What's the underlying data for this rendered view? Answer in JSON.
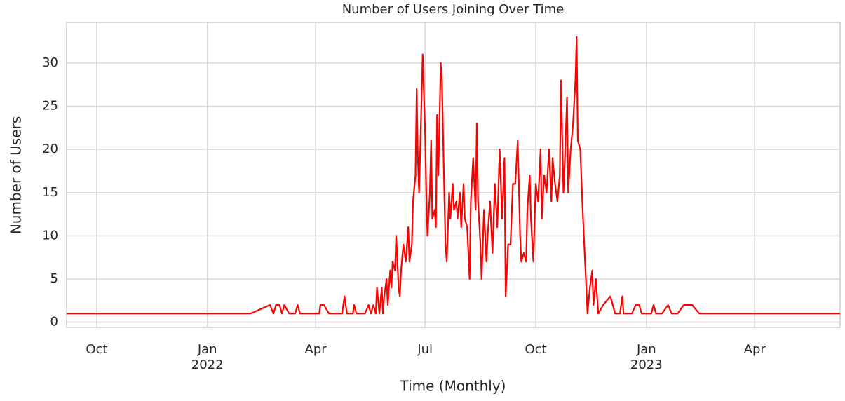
{
  "chart_data": {
    "type": "line",
    "title": "Number of Users Joining Over Time",
    "x_label": "Time (Monthly)",
    "y_label": "Number of Users",
    "grid": true,
    "xlim": [
      "2021-09-06",
      "2023-06-11"
    ],
    "xticks": [
      {
        "value": "2021-10-01",
        "label": "Oct"
      },
      {
        "value": "2022-01-01",
        "label": "Jan\n2022"
      },
      {
        "value": "2022-04-01",
        "label": "Apr"
      },
      {
        "value": "2022-07-01",
        "label": "Jul"
      },
      {
        "value": "2022-10-01",
        "label": "Oct"
      },
      {
        "value": "2023-01-01",
        "label": "Jan\n2023"
      },
      {
        "value": "2023-04-01",
        "label": "Apr"
      }
    ],
    "ylim": [
      -0.6,
      34.7
    ],
    "yticks": [
      0,
      5,
      10,
      15,
      20,
      25,
      30
    ],
    "x": [
      "2021-09-06",
      "2022-02-06",
      "2022-02-22",
      "2022-02-25",
      "2022-02-27",
      "2022-03-02",
      "2022-03-04",
      "2022-03-06",
      "2022-03-10",
      "2022-03-15",
      "2022-03-17",
      "2022-03-19",
      "2022-04-04",
      "2022-04-05",
      "2022-04-08",
      "2022-04-12",
      "2022-04-23",
      "2022-04-25",
      "2022-04-27",
      "2022-05-02",
      "2022-05-03",
      "2022-05-05",
      "2022-05-12",
      "2022-05-15",
      "2022-05-17",
      "2022-05-19",
      "2022-05-21",
      "2022-05-22",
      "2022-05-24",
      "2022-05-26",
      "2022-05-27",
      "2022-05-28",
      "2022-05-30",
      "2022-05-31",
      "2022-06-02",
      "2022-06-03",
      "2022-06-04",
      "2022-06-06",
      "2022-06-07",
      "2022-06-09",
      "2022-06-10",
      "2022-06-11",
      "2022-06-13",
      "2022-06-15",
      "2022-06-17",
      "2022-06-18",
      "2022-06-20",
      "2022-06-21",
      "2022-06-23",
      "2022-06-24",
      "2022-06-25",
      "2022-06-26",
      "2022-06-27",
      "2022-06-29",
      "2022-07-01",
      "2022-07-02",
      "2022-07-03",
      "2022-07-05",
      "2022-07-06",
      "2022-07-07",
      "2022-07-09",
      "2022-07-10",
      "2022-07-11",
      "2022-07-12",
      "2022-07-14",
      "2022-07-15",
      "2022-07-17",
      "2022-07-18",
      "2022-07-19",
      "2022-07-21",
      "2022-07-22",
      "2022-07-24",
      "2022-07-25",
      "2022-07-27",
      "2022-07-28",
      "2022-07-30",
      "2022-07-31",
      "2022-08-02",
      "2022-08-03",
      "2022-08-05",
      "2022-08-07",
      "2022-08-08",
      "2022-08-10",
      "2022-08-12",
      "2022-08-13",
      "2022-08-14",
      "2022-08-16",
      "2022-08-17",
      "2022-08-19",
      "2022-08-21",
      "2022-08-22",
      "2022-08-24",
      "2022-08-26",
      "2022-08-28",
      "2022-08-30",
      "2022-09-01",
      "2022-09-03",
      "2022-09-05",
      "2022-09-06",
      "2022-09-08",
      "2022-09-10",
      "2022-09-12",
      "2022-09-14",
      "2022-09-16",
      "2022-09-18",
      "2022-09-19",
      "2022-09-21",
      "2022-09-23",
      "2022-09-24",
      "2022-09-26",
      "2022-09-27",
      "2022-09-29",
      "2022-10-01",
      "2022-10-03",
      "2022-10-05",
      "2022-10-06",
      "2022-10-08",
      "2022-10-10",
      "2022-10-12",
      "2022-10-14",
      "2022-10-15",
      "2022-10-17",
      "2022-10-19",
      "2022-10-21",
      "2022-10-22",
      "2022-10-24",
      "2022-10-25",
      "2022-10-27",
      "2022-10-28",
      "2022-10-30",
      "2022-11-01",
      "2022-11-03",
      "2022-11-04",
      "2022-11-05",
      "2022-11-07",
      "2022-11-09",
      "2022-11-10",
      "2022-11-12",
      "2022-11-13",
      "2022-11-15",
      "2022-11-17",
      "2022-11-18",
      "2022-11-20",
      "2022-11-22",
      "2022-11-26",
      "2022-12-02",
      "2022-12-06",
      "2022-12-10",
      "2022-12-12",
      "2022-12-13",
      "2022-12-20",
      "2022-12-23",
      "2022-12-26",
      "2022-12-28",
      "2023-01-05",
      "2023-01-07",
      "2023-01-09",
      "2023-01-14",
      "2023-01-19",
      "2023-01-22",
      "2023-01-27",
      "2023-02-01",
      "2023-02-08",
      "2023-02-14",
      "2023-06-11"
    ],
    "series": [
      {
        "name": "Number of Users",
        "color": "#ff0000",
        "values": [
          1,
          1,
          2,
          1,
          2,
          2,
          1,
          2,
          1,
          1,
          2,
          1,
          1,
          2,
          2,
          1,
          1,
          3,
          1,
          1,
          2,
          1,
          1,
          2,
          1,
          2,
          1,
          4,
          1,
          4,
          1,
          3,
          5,
          2,
          6,
          4,
          7,
          6,
          10,
          4,
          3,
          6,
          9,
          7,
          11,
          7,
          9,
          14,
          17,
          27,
          19,
          15,
          20,
          31,
          22,
          15,
          10,
          15,
          21,
          12,
          13,
          11,
          24,
          17,
          30,
          28,
          15,
          9,
          7,
          15,
          12,
          16,
          13,
          14,
          12,
          15,
          11,
          16,
          12,
          11,
          5,
          14,
          19,
          13,
          23,
          14,
          9,
          5,
          13,
          7,
          10,
          14,
          8,
          16,
          11,
          20,
          12,
          19,
          3,
          9,
          9,
          16,
          16,
          21,
          10,
          7,
          8,
          7,
          13,
          17,
          12,
          7,
          16,
          14,
          20,
          12,
          17,
          15,
          20,
          14,
          19,
          16,
          14,
          17,
          28,
          15,
          18,
          26,
          15,
          20,
          23,
          28,
          33,
          21,
          20,
          13,
          10,
          4,
          1,
          4,
          6,
          2,
          5,
          1,
          2,
          3,
          1,
          1,
          3,
          1,
          1,
          2,
          2,
          1,
          1,
          2,
          1,
          1,
          2,
          1,
          1,
          2,
          2,
          1,
          1
        ]
      }
    ]
  }
}
